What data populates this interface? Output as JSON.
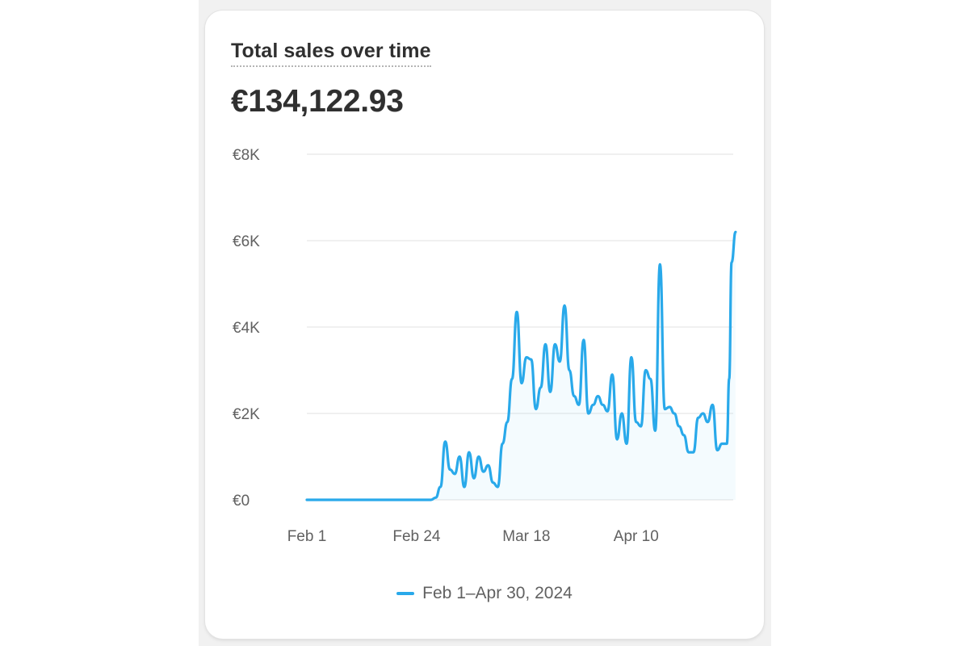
{
  "card": {
    "title": "Total sales over time",
    "total": "€134,122.93"
  },
  "colors": {
    "series": "#29a9ea",
    "grid": "#ececec",
    "text": "#303030",
    "muted": "#616161"
  },
  "chart_data": {
    "type": "area",
    "title": "Total sales over time",
    "xlabel": "",
    "ylabel": "",
    "x_range": [
      "2024-02-01",
      "2024-04-30"
    ],
    "ylim": [
      0,
      8000
    ],
    "y_ticks": [
      {
        "value": 0,
        "label": "€0"
      },
      {
        "value": 2000,
        "label": "€2K"
      },
      {
        "value": 4000,
        "label": "€4K"
      },
      {
        "value": 6000,
        "label": "€6K"
      },
      {
        "value": 8000,
        "label": "€8K"
      }
    ],
    "x_ticks": [
      {
        "date": "2024-02-01",
        "label": "Feb 1"
      },
      {
        "date": "2024-02-24",
        "label": "Feb 24"
      },
      {
        "date": "2024-03-18",
        "label": "Mar 18"
      },
      {
        "date": "2024-04-10",
        "label": "Apr 10"
      }
    ],
    "grid": true,
    "legend_position": "bottom-center",
    "series": [
      {
        "name": "Feb 1–Apr 30, 2024",
        "color": "#29a9ea",
        "points": [
          [
            "2024-02-01",
            0
          ],
          [
            "2024-02-05",
            0
          ],
          [
            "2024-02-10",
            0
          ],
          [
            "2024-02-15",
            0
          ],
          [
            "2024-02-20",
            0
          ],
          [
            "2024-02-23",
            0
          ],
          [
            "2024-02-24",
            0
          ],
          [
            "2024-02-25",
            0
          ],
          [
            "2024-02-26",
            0
          ],
          [
            "2024-02-27",
            0
          ],
          [
            "2024-02-28",
            50
          ],
          [
            "2024-02-29",
            300
          ],
          [
            "2024-03-01",
            1350
          ],
          [
            "2024-03-02",
            700
          ],
          [
            "2024-03-03",
            600
          ],
          [
            "2024-03-04",
            1000
          ],
          [
            "2024-03-05",
            300
          ],
          [
            "2024-03-06",
            1100
          ],
          [
            "2024-03-07",
            500
          ],
          [
            "2024-03-08",
            1000
          ],
          [
            "2024-03-09",
            650
          ],
          [
            "2024-03-10",
            800
          ],
          [
            "2024-03-11",
            400
          ],
          [
            "2024-03-12",
            300
          ],
          [
            "2024-03-13",
            1300
          ],
          [
            "2024-03-14",
            1800
          ],
          [
            "2024-03-15",
            2800
          ],
          [
            "2024-03-16",
            4350
          ],
          [
            "2024-03-17",
            2700
          ],
          [
            "2024-03-18",
            3300
          ],
          [
            "2024-03-19",
            3250
          ],
          [
            "2024-03-20",
            2100
          ],
          [
            "2024-03-21",
            2600
          ],
          [
            "2024-03-22",
            3600
          ],
          [
            "2024-03-23",
            2500
          ],
          [
            "2024-03-24",
            3600
          ],
          [
            "2024-03-25",
            3200
          ],
          [
            "2024-03-26",
            4500
          ],
          [
            "2024-03-27",
            3000
          ],
          [
            "2024-03-28",
            2400
          ],
          [
            "2024-03-29",
            2200
          ],
          [
            "2024-03-30",
            3700
          ],
          [
            "2024-03-31",
            2000
          ],
          [
            "2024-04-01",
            2200
          ],
          [
            "2024-04-02",
            2400
          ],
          [
            "2024-04-03",
            2200
          ],
          [
            "2024-04-04",
            2050
          ],
          [
            "2024-04-05",
            2900
          ],
          [
            "2024-04-06",
            1400
          ],
          [
            "2024-04-07",
            2000
          ],
          [
            "2024-04-08",
            1300
          ],
          [
            "2024-04-09",
            3300
          ],
          [
            "2024-04-10",
            1800
          ],
          [
            "2024-04-11",
            1700
          ],
          [
            "2024-04-12",
            3000
          ],
          [
            "2024-04-13",
            2800
          ],
          [
            "2024-04-14",
            1600
          ],
          [
            "2024-04-15",
            5450
          ],
          [
            "2024-04-16",
            2100
          ],
          [
            "2024-04-17",
            2150
          ],
          [
            "2024-04-18",
            2000
          ],
          [
            "2024-04-19",
            1700
          ],
          [
            "2024-04-20",
            1500
          ],
          [
            "2024-04-21",
            1100
          ],
          [
            "2024-04-22",
            1100
          ],
          [
            "2024-04-23",
            1900
          ],
          [
            "2024-04-24",
            2000
          ],
          [
            "2024-04-25",
            1800
          ],
          [
            "2024-04-26",
            2200
          ],
          [
            "2024-04-27",
            1150
          ],
          [
            "2024-04-28",
            1300
          ],
          [
            "2024-04-29",
            1300
          ],
          [
            "2024-04-29T12:00",
            2800
          ],
          [
            "2024-04-30",
            5500
          ],
          [
            "2024-04-30T20:00",
            6200
          ]
        ]
      }
    ]
  }
}
